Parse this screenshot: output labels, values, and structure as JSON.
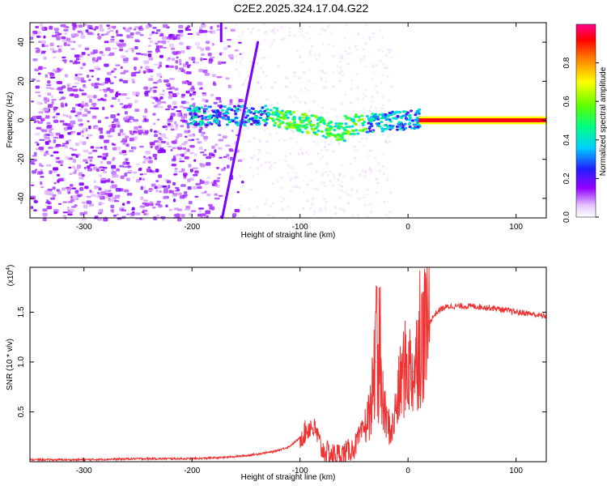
{
  "title": "C2E2.2025.324.17.04.G22",
  "chart_data": [
    {
      "type": "heatmap",
      "name": "spectrogram",
      "xlabel": "Height of straight line (km)",
      "ylabel": "Frequency (Hz)",
      "xlim": [
        -350,
        128
      ],
      "ylim": [
        -50,
        50
      ],
      "xticks": [
        -300,
        -200,
        -100,
        0,
        100
      ],
      "yticks": [
        -40,
        -20,
        0,
        20,
        40
      ],
      "features": [
        {
          "name": "noise-region",
          "x_from": -350,
          "x_to": -160,
          "intensity": 0.15
        },
        {
          "name": "tone-band",
          "x_from": -200,
          "x_to": 10,
          "intensity": 0.35
        },
        {
          "name": "carrier-line",
          "x_from": 10,
          "x_to": 128,
          "frequency": 0,
          "intensity": 0.95
        }
      ],
      "colorbar": {
        "label": "Normalized spectral amplitude",
        "range": [
          0,
          1
        ],
        "ticks": [
          0.0,
          0.2,
          0.4,
          0.6,
          0.8
        ]
      }
    },
    {
      "type": "line",
      "name": "snr",
      "xlabel": "Height of straight line (km)",
      "ylabel": "SNR (10 * v/v)",
      "y_multiplier": "(x10",
      "y_multiplier_exp": "4",
      "y_multiplier_close": ")",
      "xlim": [
        -350,
        128
      ],
      "ylim": [
        0,
        1.95
      ],
      "xticks": [
        -300,
        -200,
        -100,
        0,
        100
      ],
      "yticks": [
        0.5,
        1.0,
        1.5
      ],
      "color": "#ee3333",
      "x": [
        -350,
        -300,
        -250,
        -200,
        -175,
        -150,
        -125,
        -110,
        -100,
        -90,
        -85,
        -80,
        -70,
        -60,
        -50,
        -40,
        -35,
        -30,
        -25,
        -20,
        -15,
        -10,
        -5,
        0,
        5,
        10,
        15,
        20,
        25,
        30,
        35,
        40,
        50,
        60,
        70,
        80,
        90,
        100,
        110,
        120,
        128
      ],
      "y": [
        0.02,
        0.02,
        0.03,
        0.03,
        0.04,
        0.06,
        0.1,
        0.15,
        0.24,
        0.36,
        0.3,
        0.12,
        0.07,
        0.08,
        0.14,
        0.35,
        0.5,
        1.0,
        0.7,
        0.4,
        0.3,
        0.6,
        0.9,
        0.95,
        0.9,
        1.1,
        1.3,
        1.4,
        1.48,
        1.53,
        1.55,
        1.56,
        1.56,
        1.56,
        1.55,
        1.54,
        1.52,
        1.5,
        1.49,
        1.47,
        1.46
      ]
    }
  ]
}
